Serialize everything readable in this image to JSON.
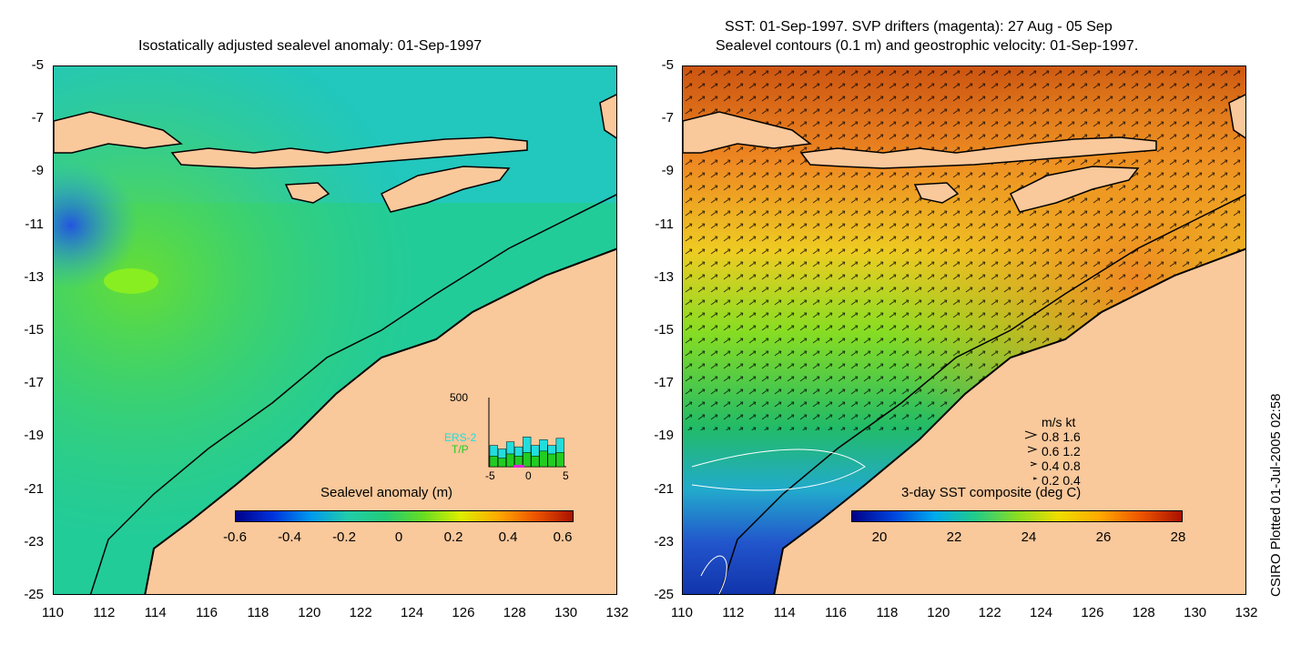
{
  "left_panel": {
    "title": "Isostatically adjusted sealevel anomaly: 01-Sep-1997",
    "colorbar_label": "Sealevel anomaly (m)",
    "colorbar_ticks": [
      "-0.6",
      "-0.4",
      "-0.2",
      "0",
      "0.2",
      "0.4",
      "0.6"
    ],
    "histogram": {
      "ymax_label": "500",
      "legend": [
        "ERS-2",
        "T/P"
      ],
      "legend_colors": [
        "#22dddd",
        "#22cc22"
      ],
      "x_ticks": [
        "-5",
        "0",
        "5"
      ],
      "ers2_values": [
        0.3,
        0.25,
        0.35,
        0.28,
        0.42,
        0.3,
        0.38,
        0.3,
        0.4
      ],
      "tp_values": [
        0.15,
        0.12,
        0.18,
        0.15,
        0.2,
        0.15,
        0.22,
        0.18,
        0.2
      ]
    }
  },
  "right_panel": {
    "title_line1": "SST: 01-Sep-1997. SVP drifters (magenta): 27 Aug - 05 Sep",
    "title_line2": "Sealevel contours (0.1 m) and geostrophic velocity: 01-Sep-1997.",
    "colorbar_label": "3-day SST composite (deg C)",
    "colorbar_ticks": [
      "20",
      "22",
      "24",
      "26",
      "28"
    ],
    "velocity_legend": {
      "header": "m/s  kt",
      "rows": [
        "0.8  1.6",
        "0.6  1.2",
        "0.4  0.8",
        "0.2  0.4"
      ]
    }
  },
  "axes": {
    "y_ticks": [
      "-5",
      "-7",
      "-9",
      "-11",
      "-13",
      "-15",
      "-17",
      "-19",
      "-21",
      "-23",
      "-25"
    ],
    "x_ticks": [
      "110",
      "112",
      "114",
      "116",
      "118",
      "120",
      "122",
      "124",
      "126",
      "128",
      "130",
      "132"
    ]
  },
  "credit": "CSIRO Plotted 01-Jul-2005 02:58",
  "colors": {
    "land": "#f9c89b",
    "ocean_left": "#22cc99",
    "sst_warm": "#ee8822",
    "sst_cool": "#1133aa"
  }
}
